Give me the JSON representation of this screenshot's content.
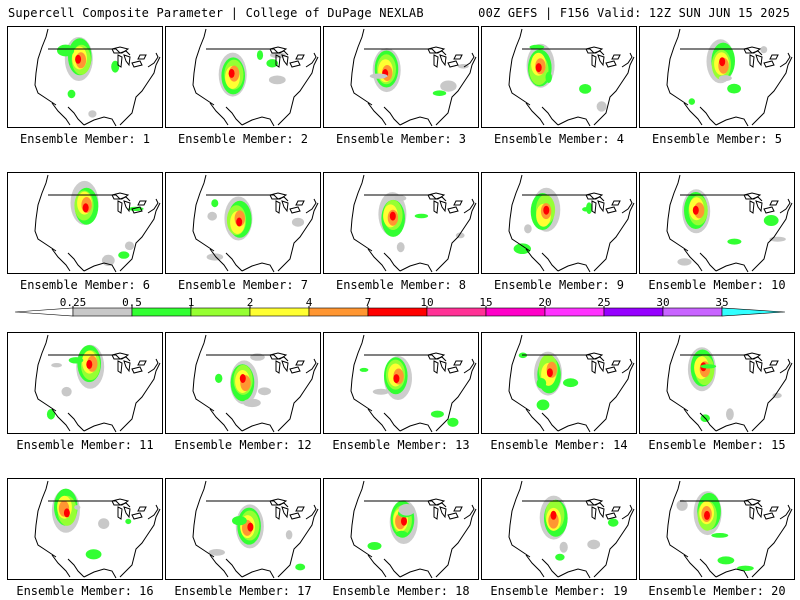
{
  "header": {
    "left": "Supercell Composite Parameter | College of DuPage NEXLAB",
    "right": "00Z GEFS | F156 Valid: 12Z SUN JUN 15 2025"
  },
  "members": [
    {
      "label": "Ensemble Member: 1"
    },
    {
      "label": "Ensemble Member: 2"
    },
    {
      "label": "Ensemble Member: 3"
    },
    {
      "label": "Ensemble Member: 4"
    },
    {
      "label": "Ensemble Member: 5"
    },
    {
      "label": "Ensemble Member: 6"
    },
    {
      "label": "Ensemble Member: 7"
    },
    {
      "label": "Ensemble Member: 8"
    },
    {
      "label": "Ensemble Member: 9"
    },
    {
      "label": "Ensemble Member: 10"
    },
    {
      "label": "Ensemble Member: 11"
    },
    {
      "label": "Ensemble Member: 12"
    },
    {
      "label": "Ensemble Member: 13"
    },
    {
      "label": "Ensemble Member: 14"
    },
    {
      "label": "Ensemble Member: 15"
    },
    {
      "label": "Ensemble Member: 16"
    },
    {
      "label": "Ensemble Member: 17"
    },
    {
      "label": "Ensemble Member: 18"
    },
    {
      "label": "Ensemble Member: 19"
    },
    {
      "label": "Ensemble Member: 20"
    }
  ],
  "colorbar": {
    "thresholds": [
      "0.25",
      "0.5",
      "1",
      "2",
      "4",
      "7",
      "10",
      "15",
      "20",
      "25",
      "30",
      "35"
    ],
    "colors": [
      "#c8c8c8",
      "#32ff32",
      "#96ff32",
      "#ffff32",
      "#ff9632",
      "#ff0000",
      "#ff3296",
      "#ff00c8",
      "#ff32ff",
      "#9600ff",
      "#c864ff",
      "#32ffff"
    ]
  }
}
